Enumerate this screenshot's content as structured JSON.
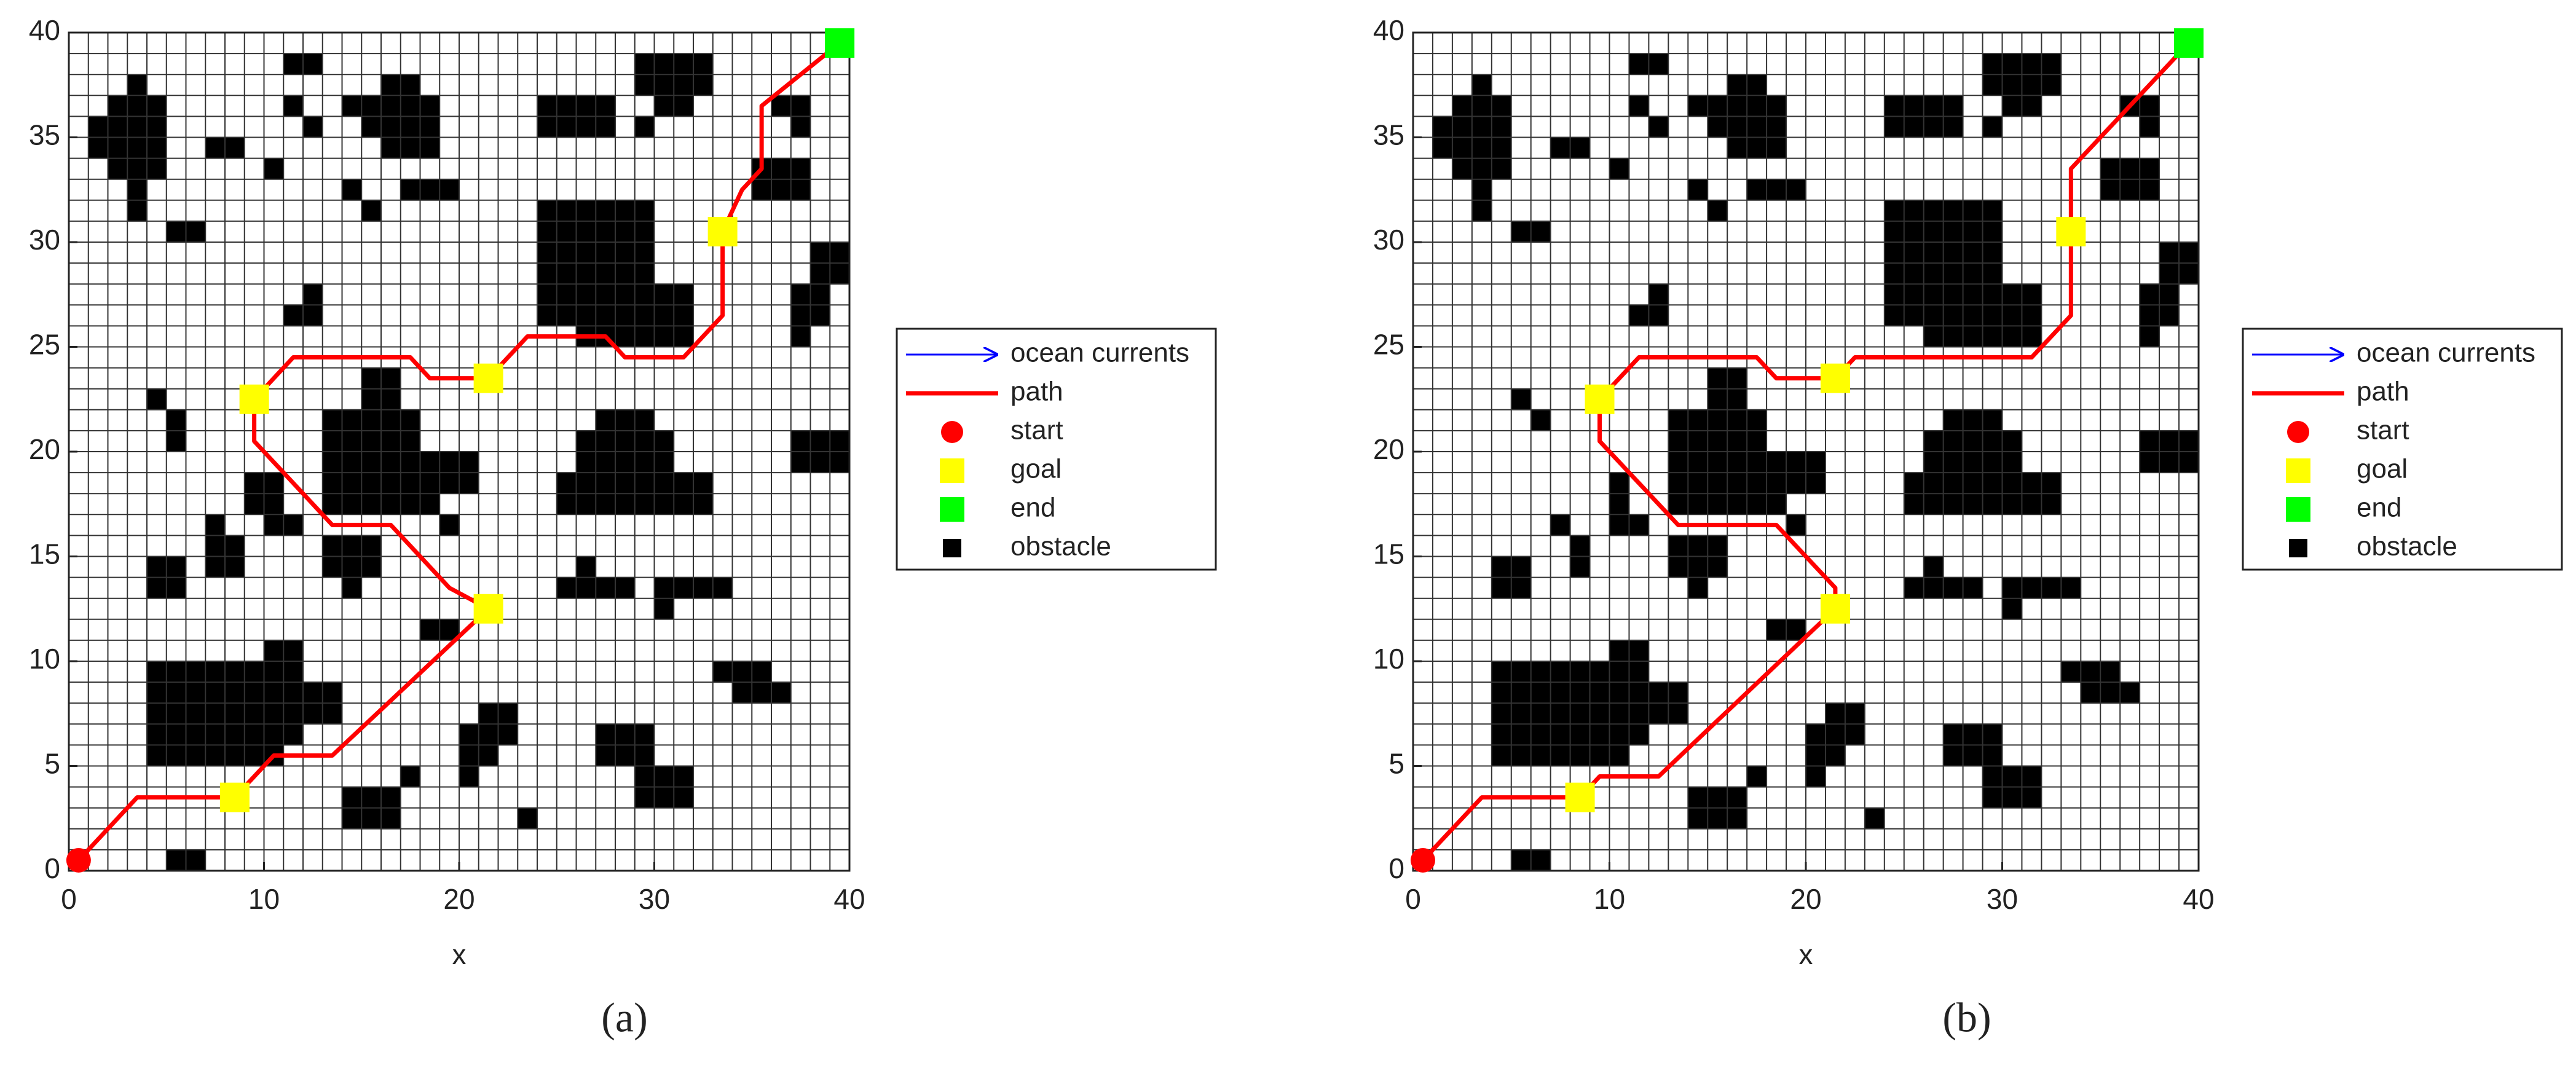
{
  "chart_data": [
    {
      "type": "line",
      "caption": "(a)",
      "xlabel": "x",
      "xlim": [
        0,
        40
      ],
      "ylim": [
        0,
        40
      ],
      "xticks": [
        0,
        10,
        20,
        30,
        40
      ],
      "yticks": [
        0,
        5,
        10,
        15,
        20,
        25,
        30,
        35,
        40
      ],
      "grid": true,
      "minor_grid": 1,
      "legend": "right",
      "series": [
        {
          "name": "ocean currents",
          "color": "#0000ff"
        },
        {
          "name": "path",
          "color": "#ff0000",
          "x": [
            0.5,
            3.5,
            8.5,
            10.5,
            13.5,
            21.5,
            19.5,
            16.5,
            13.5,
            9.5,
            9.5,
            11.5,
            17.5,
            18.5,
            21.5,
            23.5,
            27.5,
            28.5,
            31.5,
            33.5,
            33.5,
            34.5,
            35.5,
            35.5,
            39.5
          ],
          "y": [
            0.5,
            3.5,
            3.5,
            5.5,
            5.5,
            12.5,
            13.5,
            16.5,
            16.5,
            20.5,
            22.5,
            24.5,
            24.5,
            23.5,
            23.5,
            25.5,
            25.5,
            24.5,
            24.5,
            26.5,
            30.5,
            32.5,
            33.5,
            36.5,
            39.5
          ]
        },
        {
          "name": "start",
          "color": "#ff0000",
          "x": [
            0.5
          ],
          "y": [
            0.5
          ]
        },
        {
          "name": "goal",
          "color": "#ffff00",
          "x": [
            8.5,
            21.5,
            9.5,
            21.5,
            33.5
          ],
          "y": [
            3.5,
            12.5,
            22.5,
            23.5,
            30.5
          ]
        },
        {
          "name": "end",
          "color": "#00ff00",
          "x": [
            39.5
          ],
          "y": [
            39.5
          ]
        },
        {
          "name": "obstacle",
          "color": "#000000",
          "cells": [
            [
              3,
              37,
              4,
              38
            ],
            [
              2,
              33,
              5,
              37
            ],
            [
              1,
              34,
              2,
              36
            ],
            [
              3,
              31,
              4,
              33
            ],
            [
              5,
              30,
              7,
              31
            ],
            [
              7,
              34,
              9,
              35
            ],
            [
              11,
              38,
              13,
              39
            ],
            [
              11,
              36,
              12,
              37
            ],
            [
              12,
              35,
              13,
              36
            ],
            [
              10,
              33,
              11,
              34
            ],
            [
              14,
              36,
              15,
              37
            ],
            [
              15,
              35,
              19,
              37
            ],
            [
              16,
              37,
              18,
              38
            ],
            [
              16,
              34,
              19,
              35
            ],
            [
              14,
              32,
              15,
              33
            ],
            [
              15,
              31,
              16,
              32
            ],
            [
              17,
              32,
              20,
              33
            ],
            [
              24,
              35,
              28,
              37
            ],
            [
              29,
              35,
              30,
              36
            ],
            [
              29,
              37,
              33,
              39
            ],
            [
              30,
              36,
              32,
              37
            ],
            [
              36,
              36,
              38,
              37
            ],
            [
              37,
              35,
              38,
              36
            ],
            [
              35,
              32,
              38,
              34
            ],
            [
              24,
              26,
              30,
              32
            ],
            [
              26,
              25,
              32,
              28
            ],
            [
              12,
              27,
              13,
              28
            ],
            [
              11,
              26,
              13,
              27
            ],
            [
              38,
              28,
              40,
              30
            ],
            [
              37,
              26,
              39,
              28
            ],
            [
              37,
              25,
              38,
              26
            ],
            [
              15,
              22,
              17,
              24
            ],
            [
              4,
              22,
              5,
              23
            ],
            [
              5,
              20,
              6,
              22
            ],
            [
              13,
              17,
              18,
              22
            ],
            [
              14,
              18,
              21,
              20
            ],
            [
              18,
              17,
              19,
              18
            ],
            [
              19,
              16,
              20,
              17
            ],
            [
              9,
              17,
              11,
              19
            ],
            [
              10,
              16,
              12,
              17
            ],
            [
              7,
              16,
              8,
              17
            ],
            [
              7,
              14,
              9,
              16
            ],
            [
              25,
              17,
              33,
              19
            ],
            [
              26,
              19,
              31,
              21
            ],
            [
              27,
              21,
              30,
              22
            ],
            [
              37,
              19,
              40,
              21
            ],
            [
              4,
              13,
              6,
              15
            ],
            [
              13,
              14,
              16,
              16
            ],
            [
              14,
              13,
              15,
              14
            ],
            [
              18,
              11,
              20,
              12
            ],
            [
              25,
              13,
              29,
              14
            ],
            [
              26,
              14,
              27,
              15
            ],
            [
              30,
              13,
              34,
              14
            ],
            [
              30,
              12,
              31,
              13
            ],
            [
              10,
              9,
              12,
              11
            ],
            [
              4,
              5,
              11,
              10
            ],
            [
              11,
              7,
              14,
              9
            ],
            [
              10,
              6,
              12,
              7
            ],
            [
              33,
              9,
              36,
              10
            ],
            [
              34,
              8,
              37,
              9
            ],
            [
              20,
              5,
              22,
              7
            ],
            [
              21,
              6,
              23,
              8
            ],
            [
              20,
              4,
              21,
              5
            ],
            [
              27,
              5,
              30,
              7
            ],
            [
              29,
              3,
              32,
              5
            ],
            [
              14,
              2,
              17,
              4
            ],
            [
              17,
              4,
              18,
              5
            ],
            [
              23,
              2,
              24,
              3
            ],
            [
              5,
              0,
              7,
              1
            ]
          ]
        }
      ]
    },
    {
      "type": "line",
      "caption": "(b)",
      "xlabel": "x",
      "xlim": [
        0,
        40
      ],
      "ylim": [
        0,
        40
      ],
      "xticks": [
        0,
        10,
        20,
        30,
        40
      ],
      "yticks": [
        0,
        5,
        10,
        15,
        20,
        25,
        30,
        35,
        40
      ],
      "grid": true,
      "minor_grid": 1,
      "legend": "right",
      "series": [
        {
          "name": "ocean currents",
          "color": "#0000ff"
        },
        {
          "name": "path",
          "color": "#ff0000",
          "x": [
            0.5,
            3.5,
            8.5,
            9.5,
            12.5,
            21.5,
            21.5,
            18.5,
            13.5,
            9.5,
            9.5,
            11.5,
            17.5,
            18.5,
            21.5,
            22.5,
            31.5,
            33.5,
            33.5,
            39.5
          ],
          "y": [
            0.5,
            3.5,
            3.5,
            4.5,
            4.5,
            12.5,
            13.5,
            16.5,
            16.5,
            20.5,
            22.5,
            24.5,
            24.5,
            23.5,
            23.5,
            24.5,
            24.5,
            26.5,
            33.5,
            39.5
          ]
        },
        {
          "name": "start",
          "color": "#ff0000",
          "x": [
            0.5
          ],
          "y": [
            0.5
          ]
        },
        {
          "name": "goal",
          "color": "#ffff00",
          "x": [
            8.5,
            21.5,
            9.5,
            21.5,
            33.5
          ],
          "y": [
            3.5,
            12.5,
            22.5,
            23.5,
            30.5
          ]
        },
        {
          "name": "end",
          "color": "#00ff00",
          "x": [
            39.5
          ],
          "y": [
            39.5
          ]
        },
        {
          "name": "obstacle",
          "color": "#000000",
          "cells": [
            [
              3,
              37,
              4,
              38
            ],
            [
              2,
              33,
              5,
              37
            ],
            [
              1,
              34,
              2,
              36
            ],
            [
              3,
              31,
              4,
              33
            ],
            [
              5,
              30,
              7,
              31
            ],
            [
              7,
              34,
              9,
              35
            ],
            [
              11,
              38,
              13,
              39
            ],
            [
              11,
              36,
              12,
              37
            ],
            [
              12,
              35,
              13,
              36
            ],
            [
              10,
              33,
              11,
              34
            ],
            [
              14,
              36,
              15,
              37
            ],
            [
              15,
              35,
              19,
              37
            ],
            [
              16,
              37,
              18,
              38
            ],
            [
              16,
              34,
              19,
              35
            ],
            [
              14,
              32,
              15,
              33
            ],
            [
              15,
              31,
              16,
              32
            ],
            [
              17,
              32,
              20,
              33
            ],
            [
              24,
              35,
              28,
              37
            ],
            [
              29,
              35,
              30,
              36
            ],
            [
              29,
              37,
              33,
              39
            ],
            [
              30,
              36,
              32,
              37
            ],
            [
              36,
              36,
              38,
              37
            ],
            [
              37,
              35,
              38,
              36
            ],
            [
              35,
              32,
              38,
              34
            ],
            [
              24,
              26,
              30,
              32
            ],
            [
              26,
              25,
              32,
              28
            ],
            [
              12,
              27,
              13,
              28
            ],
            [
              11,
              26,
              13,
              27
            ],
            [
              38,
              28,
              40,
              30
            ],
            [
              37,
              26,
              39,
              28
            ],
            [
              37,
              25,
              38,
              26
            ],
            [
              15,
              22,
              17,
              24
            ],
            [
              5,
              22,
              6,
              23
            ],
            [
              6,
              21,
              7,
              22
            ],
            [
              13,
              17,
              18,
              22
            ],
            [
              14,
              18,
              21,
              20
            ],
            [
              18,
              17,
              19,
              18
            ],
            [
              19,
              16,
              20,
              17
            ],
            [
              10,
              17,
              11,
              19
            ],
            [
              10,
              16,
              12,
              17
            ],
            [
              7,
              16,
              8,
              17
            ],
            [
              8,
              14,
              9,
              16
            ],
            [
              25,
              17,
              33,
              19
            ],
            [
              26,
              19,
              31,
              21
            ],
            [
              27,
              21,
              30,
              22
            ],
            [
              37,
              19,
              40,
              21
            ],
            [
              4,
              13,
              6,
              15
            ],
            [
              13,
              14,
              16,
              16
            ],
            [
              14,
              13,
              15,
              14
            ],
            [
              18,
              11,
              20,
              12
            ],
            [
              25,
              13,
              29,
              14
            ],
            [
              26,
              14,
              27,
              15
            ],
            [
              30,
              13,
              34,
              14
            ],
            [
              30,
              12,
              31,
              13
            ],
            [
              10,
              9,
              12,
              11
            ],
            [
              4,
              5,
              11,
              10
            ],
            [
              11,
              7,
              14,
              9
            ],
            [
              10,
              6,
              12,
              7
            ],
            [
              33,
              9,
              36,
              10
            ],
            [
              34,
              8,
              37,
              9
            ],
            [
              20,
              5,
              22,
              7
            ],
            [
              21,
              6,
              23,
              8
            ],
            [
              20,
              4,
              21,
              5
            ],
            [
              27,
              5,
              30,
              7
            ],
            [
              29,
              3,
              32,
              5
            ],
            [
              14,
              2,
              17,
              4
            ],
            [
              17,
              4,
              18,
              5
            ],
            [
              23,
              2,
              24,
              3
            ],
            [
              5,
              0,
              7,
              1
            ]
          ]
        }
      ]
    }
  ]
}
